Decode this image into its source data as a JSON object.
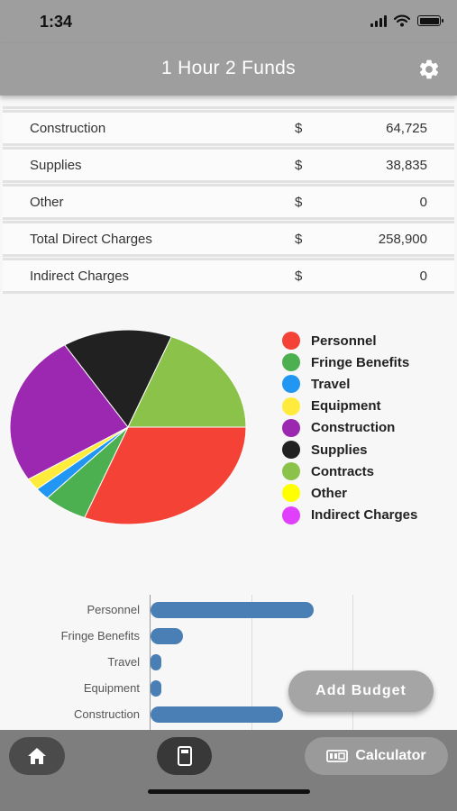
{
  "status_bar": {
    "time": "1:34"
  },
  "header": {
    "title": "1 Hour 2 Funds"
  },
  "budget_table": {
    "rows": [
      {
        "label": "Construction",
        "currency": "$",
        "amount": "64,725"
      },
      {
        "label": "Supplies",
        "currency": "$",
        "amount": "38,835"
      },
      {
        "label": "Other",
        "currency": "$",
        "amount": "0"
      },
      {
        "label": "Total Direct Charges",
        "currency": "$",
        "amount": "258,900"
      },
      {
        "label": "Indirect Charges",
        "currency": "$",
        "amount": "0"
      }
    ]
  },
  "legend": {
    "items": [
      {
        "label": "Personnel",
        "color": "#f44336"
      },
      {
        "label": "Fringe Benefits",
        "color": "#4caf50"
      },
      {
        "label": "Travel",
        "color": "#2196f3"
      },
      {
        "label": "Equipment",
        "color": "#ffeb3b"
      },
      {
        "label": "Construction",
        "color": "#9c27b0"
      },
      {
        "label": "Supplies",
        "color": "#212121"
      },
      {
        "label": "Contracts",
        "color": "#8bc34a"
      },
      {
        "label": "Other",
        "color": "#ffff00"
      },
      {
        "label": "Indirect Charges",
        "color": "#e040fb"
      }
    ]
  },
  "chart_data": [
    {
      "type": "pie",
      "categories": [
        "Personnel",
        "Fringe Benefits",
        "Travel",
        "Equipment",
        "Construction",
        "Supplies",
        "Contracts",
        "Other",
        "Indirect Charges"
      ],
      "values": [
        31,
        6,
        2,
        2,
        25,
        15,
        19,
        0,
        0
      ],
      "colors": [
        "#f44336",
        "#4caf50",
        "#2196f3",
        "#ffeb3b",
        "#9c27b0",
        "#212121",
        "#8bc34a",
        "#ffff00",
        "#e040fb"
      ],
      "legend": "right"
    },
    {
      "type": "bar",
      "orientation": "horizontal",
      "categories": [
        "Personnel",
        "Fringe Benefits",
        "Travel",
        "Equipment",
        "Construction"
      ],
      "values": [
        80000,
        16000,
        5000,
        5000,
        64725
      ],
      "xlim": [
        0,
        150000
      ],
      "color": "#4a7fb5",
      "grid": true
    }
  ],
  "buttons": {
    "add_budget": "Add Budget",
    "calculator": "Calculator"
  },
  "icons": {
    "settings": "gear-icon",
    "home": "home-icon",
    "calculator": "calculator-icon"
  }
}
